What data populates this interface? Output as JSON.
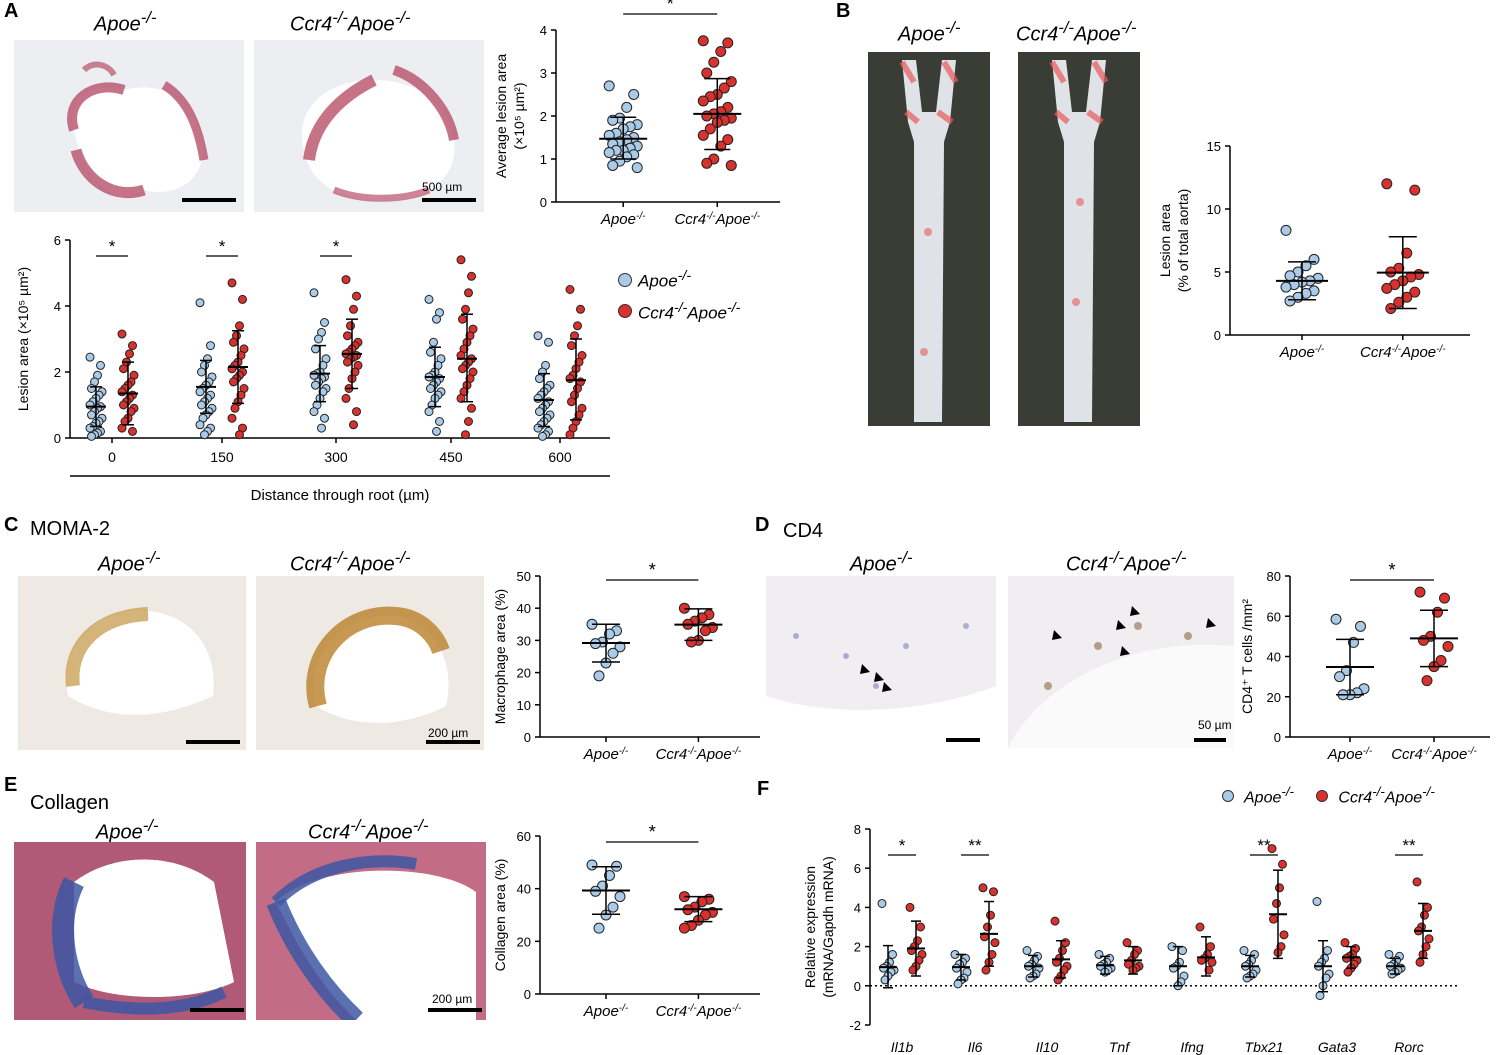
{
  "colors": {
    "apoe": "#a9cbe8",
    "ccr4": "#d9312d"
  },
  "A": {
    "label": "A",
    "micro": {
      "g1": "Apoe",
      "g2": "Ccr4",
      "g2b": "Apoe",
      "sup": "-/-",
      "scale": "500 µm"
    },
    "legend": {
      "apoe": "Apoe",
      "ccr4": "Ccr4",
      "ccr4b": "Apoe",
      "sup": "-/-"
    },
    "chart_data": [
      {
        "type": "scatter",
        "ylabel": "Average lesion area (×10⁵ µm²)",
        "ylim": [
          0,
          4
        ],
        "yticks": [
          "0",
          "1",
          "2",
          "3",
          "4"
        ],
        "categories": [
          "Apoe-/-",
          "Ccr4-/-Apoe-/-"
        ],
        "significance": "*",
        "series": [
          {
            "name": "Apoe-/-",
            "mean": 1.47,
            "sd_low": 1.0,
            "sd_high": 1.97,
            "values": [
              2.7,
              2.5,
              2.2,
              1.95,
              1.9,
              1.8,
              1.75,
              1.7,
              1.6,
              1.55,
              1.5,
              1.45,
              1.4,
              1.35,
              1.3,
              1.25,
              1.2,
              1.2,
              1.15,
              1.1,
              1.05,
              0.95,
              0.85,
              0.8
            ]
          },
          {
            "name": "Ccr4-/-Apoe-/-",
            "mean": 2.05,
            "sd_low": 1.22,
            "sd_high": 2.87,
            "values": [
              3.75,
              3.7,
              3.5,
              3.25,
              3.0,
              2.8,
              2.65,
              2.5,
              2.45,
              2.35,
              2.2,
              2.1,
              2.05,
              2.0,
              1.95,
              1.9,
              1.85,
              1.7,
              1.55,
              1.45,
              1.3,
              1.0,
              0.9,
              0.85
            ]
          }
        ]
      },
      {
        "type": "scatter",
        "ylabel": "Lesion area (×10⁵ µm²)",
        "xlabel": "Distance through root (µm)",
        "ylim": [
          0,
          6
        ],
        "yticks": [
          "0",
          "2",
          "4",
          "6"
        ],
        "categories": [
          "0",
          "150",
          "300",
          "450",
          "600"
        ],
        "significance": [
          "*",
          "*",
          "*",
          "",
          ""
        ],
        "series": [
          {
            "name": "Apoe-/-",
            "mean": [
              0.95,
              1.55,
              1.95,
              1.85,
              1.15
            ],
            "sd_low": [
              0.35,
              0.75,
              1.1,
              0.95,
              0.35
            ],
            "sd_high": [
              1.55,
              2.35,
              2.8,
              2.75,
              1.95
            ],
            "values": [
              [
                2.45,
                2.2,
                1.9,
                1.7,
                1.5,
                1.4,
                1.3,
                1.2,
                1.1,
                1.0,
                0.95,
                0.9,
                0.8,
                0.7,
                0.6,
                0.5,
                0.45,
                0.35,
                0.3,
                0.2,
                0.15,
                0.1,
                0.05
              ],
              [
                4.1,
                2.8,
                2.4,
                2.2,
                2.0,
                1.85,
                1.7,
                1.6,
                1.5,
                1.4,
                1.3,
                1.2,
                1.1,
                1.0,
                0.9,
                0.8,
                0.7,
                0.6,
                0.4,
                0.3,
                0.2,
                0.1
              ],
              [
                4.4,
                3.5,
                3.2,
                3.0,
                2.7,
                2.4,
                2.2,
                2.0,
                1.95,
                1.9,
                1.85,
                1.8,
                1.7,
                1.6,
                1.5,
                1.4,
                1.2,
                1.0,
                0.8,
                0.6,
                0.3
              ],
              [
                4.2,
                3.8,
                3.6,
                2.9,
                2.6,
                2.4,
                2.2,
                2.0,
                1.9,
                1.85,
                1.8,
                1.7,
                1.6,
                1.5,
                1.4,
                1.3,
                1.2,
                1.0,
                0.8,
                0.5,
                0.2
              ],
              [
                3.1,
                2.9,
                2.2,
                2.0,
                1.8,
                1.6,
                1.5,
                1.4,
                1.3,
                1.2,
                1.1,
                1.0,
                0.9,
                0.8,
                0.7,
                0.6,
                0.5,
                0.4,
                0.3,
                0.2,
                0.1,
                0.05
              ]
            ]
          },
          {
            "name": "Ccr4-/-Apoe-/-",
            "mean": [
              1.35,
              2.15,
              2.55,
              2.4,
              1.75
            ],
            "sd_low": [
              0.4,
              1.05,
              1.5,
              1.1,
              0.55
            ],
            "sd_high": [
              2.3,
              3.25,
              3.6,
              3.75,
              3.0
            ],
            "values": [
              [
                3.15,
                2.8,
                2.55,
                2.3,
                2.1,
                1.9,
                1.7,
                1.6,
                1.5,
                1.4,
                1.3,
                1.2,
                1.1,
                1.0,
                0.9,
                0.8,
                0.6,
                0.5,
                0.3,
                0.2
              ],
              [
                4.7,
                4.2,
                3.4,
                3.1,
                2.9,
                2.7,
                2.5,
                2.3,
                2.2,
                2.1,
                2.0,
                1.9,
                1.8,
                1.7,
                1.5,
                1.3,
                1.1,
                0.9,
                0.6,
                0.3,
                0.1
              ],
              [
                4.8,
                4.3,
                3.9,
                3.4,
                3.1,
                2.9,
                2.8,
                2.7,
                2.6,
                2.55,
                2.5,
                2.45,
                2.4,
                2.3,
                2.2,
                2.0,
                1.8,
                1.5,
                1.2,
                0.8,
                0.4
              ],
              [
                5.4,
                4.9,
                4.4,
                3.9,
                3.6,
                3.3,
                3.1,
                2.9,
                2.7,
                2.5,
                2.4,
                2.3,
                2.2,
                2.1,
                2.0,
                1.8,
                1.6,
                1.4,
                1.2,
                0.9,
                0.5,
                0.1
              ],
              [
                4.5,
                3.9,
                3.4,
                3.1,
                2.8,
                2.5,
                2.3,
                2.1,
                1.9,
                1.8,
                1.7,
                1.5,
                1.3,
                1.1,
                0.9,
                0.7,
                0.5,
                0.3,
                0.1
              ]
            ]
          }
        ]
      }
    ]
  },
  "B": {
    "label": "B",
    "micro": {
      "g1": "Apoe",
      "g2": "Ccr4",
      "g2b": "Apoe",
      "sup": "-/-"
    },
    "chart_data": {
      "type": "scatter",
      "ylabel": "Lesion area (% of total aorta)",
      "ylim": [
        0,
        15
      ],
      "yticks": [
        "0",
        "5",
        "10",
        "15"
      ],
      "categories": [
        "Apoe-/-",
        "Ccr4-/-Apoe-/-"
      ],
      "series": [
        {
          "name": "Apoe-/-",
          "mean": 4.3,
          "sd_low": 2.8,
          "sd_high": 5.8,
          "values": [
            8.3,
            6.0,
            5.5,
            5.0,
            4.7,
            4.5,
            4.3,
            4.2,
            4.0,
            3.8,
            3.5,
            3.3,
            3.0,
            2.7
          ]
        },
        {
          "name": "Ccr4-/-Apoe-/-",
          "mean": 4.95,
          "sd_low": 2.1,
          "sd_high": 7.8,
          "values": [
            12.0,
            11.5,
            6.5,
            5.3,
            5.0,
            4.8,
            4.6,
            4.3,
            4.0,
            3.7,
            3.4,
            3.0,
            2.6,
            2.1
          ]
        }
      ]
    }
  },
  "C": {
    "label": "C",
    "title": "MOMA-2",
    "micro": {
      "g1": "Apoe",
      "g2": "Ccr4",
      "g2b": "Apoe",
      "sup": "-/-",
      "scale": "200 µm"
    },
    "chart_data": {
      "type": "scatter",
      "ylabel": "Macrophage area (%)",
      "ylim": [
        0,
        50
      ],
      "yticks": [
        "0",
        "10",
        "20",
        "30",
        "40",
        "50"
      ],
      "categories": [
        "Apoe-/-",
        "Ccr4-/-Apoe-/-"
      ],
      "significance": "*",
      "series": [
        {
          "name": "Apoe-/-",
          "mean": 29.2,
          "sd_low": 23.3,
          "sd_high": 35.0,
          "values": [
            35.0,
            33.0,
            32.0,
            29.5,
            29.0,
            28.0,
            26.0,
            23.0,
            19.0
          ]
        },
        {
          "name": "Ccr4-/-Apoe-/-",
          "mean": 34.9,
          "sd_low": 30.0,
          "sd_high": 39.8,
          "values": [
            40.0,
            38.0,
            37.0,
            36.0,
            35.0,
            34.0,
            33.0,
            30.0,
            29.5
          ]
        }
      ]
    }
  },
  "D": {
    "label": "D",
    "title": "CD4",
    "micro": {
      "g1": "Apoe",
      "g2": "Ccr4",
      "g2b": "Apoe",
      "sup": "-/-",
      "scale": "50 µm"
    },
    "chart_data": {
      "type": "scatter",
      "ylabel": "CD4⁺ T cells /mm²",
      "ylim": [
        0,
        80
      ],
      "yticks": [
        "0",
        "20",
        "40",
        "60",
        "80"
      ],
      "categories": [
        "Apoe-/-",
        "Ccr4-/-Apoe-/-"
      ],
      "significance": "*",
      "series": [
        {
          "name": "Apoe-/-",
          "mean": 34.8,
          "sd_low": 21.0,
          "sd_high": 48.5,
          "values": [
            58.5,
            55.0,
            47.0,
            33.0,
            30.0,
            24.0,
            22.0,
            21.0,
            21.0
          ]
        },
        {
          "name": "Ccr4-/-Apoe-/-",
          "mean": 49.0,
          "sd_low": 35.0,
          "sd_high": 63.0,
          "values": [
            72.0,
            69.0,
            62.0,
            50.0,
            48.0,
            45.0,
            38.0,
            35.0,
            28.0
          ]
        }
      ]
    }
  },
  "E": {
    "label": "E",
    "title": "Collagen",
    "micro": {
      "g1": "Apoe",
      "g2": "Ccr4",
      "g2b": "Apoe",
      "sup": "-/-",
      "scale": "200 µm"
    },
    "chart_data": {
      "type": "scatter",
      "ylabel": "Collagen area (%)",
      "ylim": [
        0,
        60
      ],
      "yticks": [
        "0",
        "20",
        "40",
        "60"
      ],
      "categories": [
        "Apoe-/-",
        "Ccr4-/-Apoe-/-"
      ],
      "significance": "*",
      "series": [
        {
          "name": "Apoe-/-",
          "mean": 39.3,
          "sd_low": 30.3,
          "sd_high": 48.3,
          "values": [
            49.0,
            48.5,
            45.0,
            41.0,
            39.0,
            37.0,
            33.0,
            30.0,
            25.0
          ]
        },
        {
          "name": "Ccr4-/-Apoe-/-",
          "mean": 32.2,
          "sd_low": 27.5,
          "sd_high": 37.0,
          "values": [
            37.0,
            36.0,
            35.0,
            33.0,
            32.0,
            31.0,
            30.0,
            28.0,
            26.0,
            25.0
          ]
        }
      ]
    }
  },
  "F": {
    "label": "F",
    "legend": {
      "apoe": "Apoe",
      "ccr4": "Ccr4",
      "ccr4b": "Apoe",
      "sup": "-/-"
    },
    "chart_data": {
      "type": "scatter",
      "ylabel": "Relative expression (mRNA/Gapdh mRNA)",
      "ylim": [
        -2,
        8
      ],
      "yticks": [
        "-2",
        "0",
        "2",
        "4",
        "6",
        "8"
      ],
      "categories": [
        "Il1b",
        "Il6",
        "Il10",
        "Tnf",
        "Ifng",
        "Tbx21",
        "Gata3",
        "Rorc"
      ],
      "significance": [
        "*",
        "**",
        "",
        "",
        "",
        "**",
        "",
        "**"
      ],
      "series": [
        {
          "name": "Apoe-/-",
          "mean": [
            0.95,
            0.95,
            1.0,
            1.05,
            1.0,
            1.0,
            1.0,
            1.0
          ],
          "sd_low": [
            -0.1,
            0.3,
            0.45,
            0.6,
            0.0,
            0.45,
            -0.3,
            0.6
          ],
          "sd_high": [
            2.05,
            1.6,
            1.55,
            1.5,
            2.0,
            1.55,
            2.3,
            1.4
          ],
          "values": [
            [
              4.2,
              1.6,
              1.2,
              1.0,
              0.9,
              0.8,
              0.7,
              0.5,
              0.3
            ],
            [
              1.6,
              1.4,
              1.2,
              1.1,
              0.9,
              0.7,
              0.4,
              0.3,
              0.1
            ],
            [
              1.8,
              1.5,
              1.3,
              1.1,
              1.0,
              0.9,
              0.6,
              0.5,
              0.4
            ],
            [
              1.6,
              1.4,
              1.2,
              1.1,
              1.0,
              0.9,
              0.8,
              0.7
            ],
            [
              2.0,
              1.8,
              1.2,
              1.0,
              0.9,
              0.5,
              0.2,
              0.0
            ],
            [
              1.8,
              1.6,
              1.3,
              1.1,
              1.0,
              0.8,
              0.6,
              0.5,
              0.4
            ],
            [
              4.3,
              1.8,
              1.4,
              1.2,
              1.0,
              0.6,
              0.4,
              0.0,
              -0.5
            ],
            [
              1.6,
              1.5,
              1.3,
              1.1,
              1.0,
              0.9,
              0.8,
              0.7,
              0.6
            ]
          ]
        },
        {
          "name": "Ccr4-/-Apoe-/-",
          "mean": [
            1.9,
            2.65,
            1.35,
            1.3,
            1.45,
            3.65,
            1.45,
            2.8
          ],
          "sd_low": [
            0.5,
            1.0,
            0.4,
            0.6,
            0.5,
            1.4,
            0.9,
            1.4
          ],
          "sd_high": [
            3.3,
            4.3,
            2.3,
            2.0,
            2.5,
            5.9,
            2.0,
            4.2
          ],
          "values": [
            [
              4.0,
              3.0,
              2.3,
              2.0,
              1.8,
              1.6,
              1.3,
              1.0,
              0.8
            ],
            [
              5.0,
              4.8,
              3.6,
              3.0,
              2.5,
              2.2,
              1.6,
              1.2,
              0.8
            ],
            [
              3.3,
              2.2,
              1.8,
              1.4,
              1.2,
              1.0,
              0.8,
              0.5,
              0.3
            ],
            [
              2.2,
              1.8,
              1.6,
              1.3,
              1.1,
              1.0,
              0.9,
              0.8
            ],
            [
              3.0,
              2.0,
              1.6,
              1.4,
              1.3,
              1.2,
              0.8
            ],
            [
              7.0,
              6.2,
              5.0,
              4.2,
              3.4,
              2.6,
              2.0,
              1.7
            ],
            [
              2.2,
              1.9,
              1.6,
              1.5,
              1.4,
              1.3,
              1.1,
              0.9,
              0.7
            ],
            [
              5.3,
              4.0,
              3.6,
              3.0,
              2.8,
              2.4,
              2.0,
              1.6,
              1.2
            ]
          ]
        }
      ]
    }
  }
}
